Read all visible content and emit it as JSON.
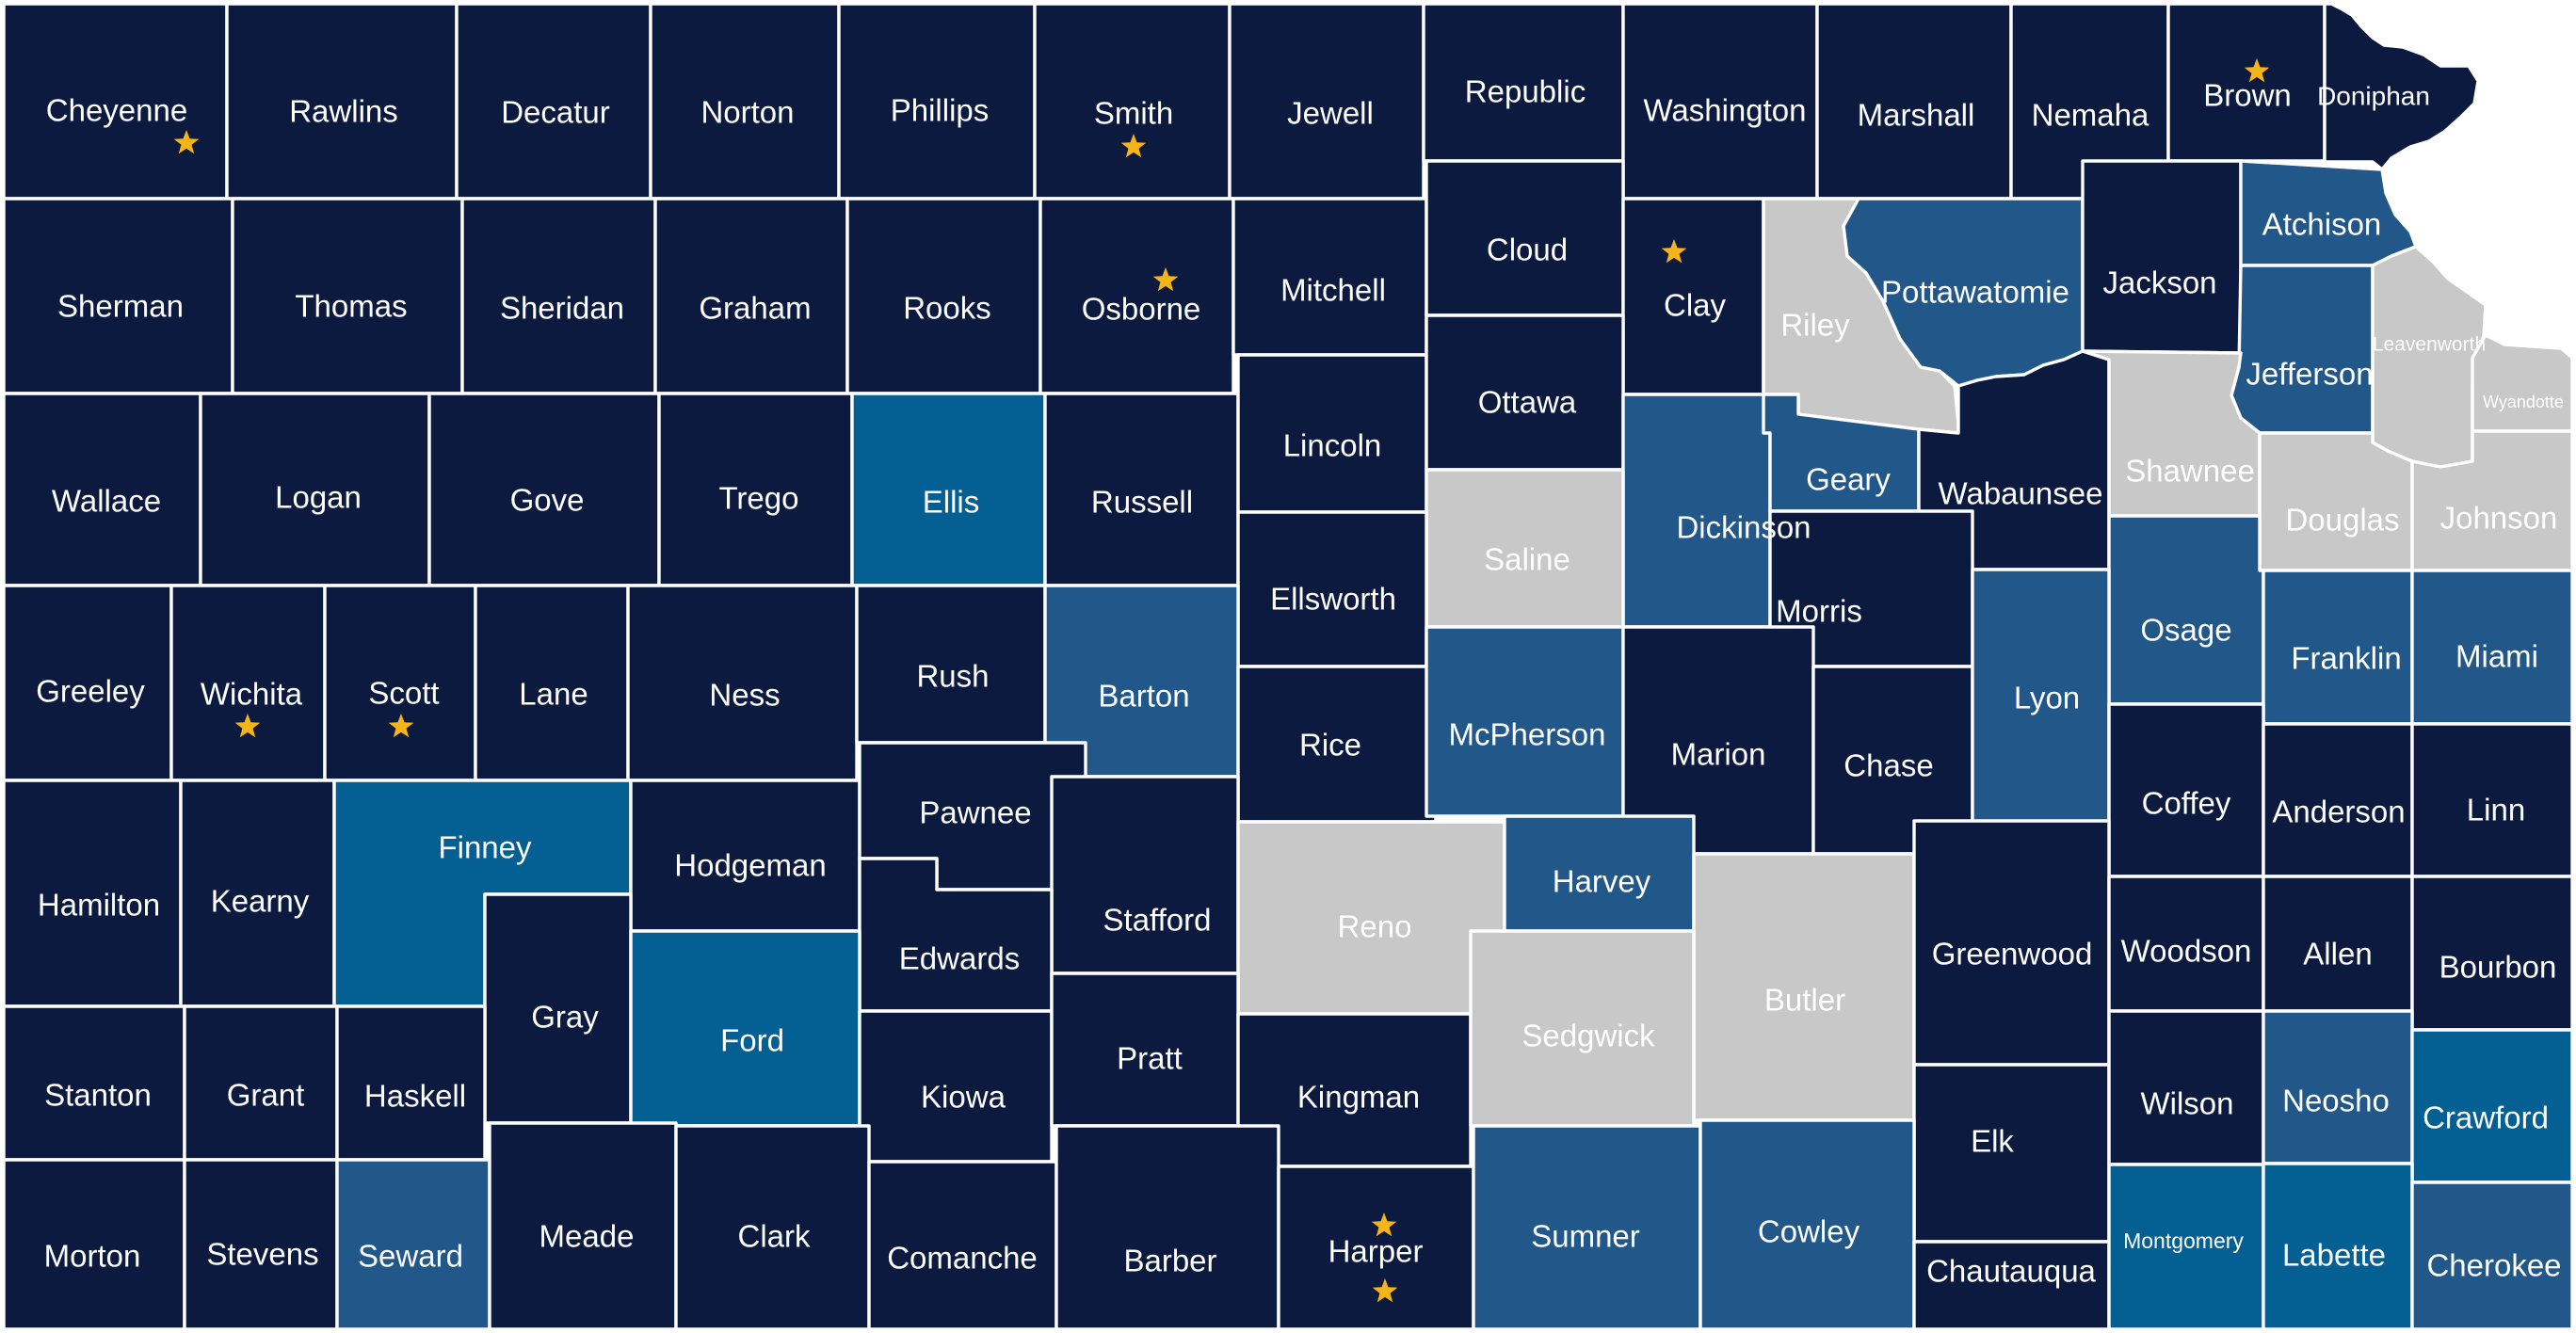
{
  "colors": {
    "dark": "#0c1a40",
    "mid": "#22578a",
    "bright": "#045f93",
    "gray": "#c8c8c8",
    "star": "#f5b417",
    "label_light": "#ffffff"
  },
  "counties": [
    {
      "name": "Cheyenne",
      "category": "dark",
      "stars": 1
    },
    {
      "name": "Rawlins",
      "category": "dark",
      "stars": 0
    },
    {
      "name": "Decatur",
      "category": "dark",
      "stars": 0
    },
    {
      "name": "Norton",
      "category": "dark",
      "stars": 0
    },
    {
      "name": "Phillips",
      "category": "dark",
      "stars": 0
    },
    {
      "name": "Smith",
      "category": "dark",
      "stars": 1
    },
    {
      "name": "Jewell",
      "category": "dark",
      "stars": 0
    },
    {
      "name": "Republic",
      "category": "dark",
      "stars": 0
    },
    {
      "name": "Washington",
      "category": "dark",
      "stars": 0
    },
    {
      "name": "Marshall",
      "category": "dark",
      "stars": 0
    },
    {
      "name": "Nemaha",
      "category": "dark",
      "stars": 0
    },
    {
      "name": "Brown",
      "category": "dark",
      "stars": 1
    },
    {
      "name": "Doniphan",
      "category": "dark",
      "stars": 0
    },
    {
      "name": "Sherman",
      "category": "dark",
      "stars": 0
    },
    {
      "name": "Thomas",
      "category": "dark",
      "stars": 0
    },
    {
      "name": "Sheridan",
      "category": "dark",
      "stars": 0
    },
    {
      "name": "Graham",
      "category": "dark",
      "stars": 0
    },
    {
      "name": "Rooks",
      "category": "dark",
      "stars": 0
    },
    {
      "name": "Osborne",
      "category": "dark",
      "stars": 1
    },
    {
      "name": "Mitchell",
      "category": "dark",
      "stars": 0
    },
    {
      "name": "Cloud",
      "category": "dark",
      "stars": 0
    },
    {
      "name": "Clay",
      "category": "dark",
      "stars": 1
    },
    {
      "name": "Riley",
      "category": "gray",
      "stars": 0
    },
    {
      "name": "Pottawatomie",
      "category": "mid",
      "stars": 0
    },
    {
      "name": "Jackson",
      "category": "dark",
      "stars": 0
    },
    {
      "name": "Atchison",
      "category": "mid",
      "stars": 0
    },
    {
      "name": "Jefferson",
      "category": "mid",
      "stars": 0
    },
    {
      "name": "Leavenworth",
      "category": "gray",
      "stars": 0
    },
    {
      "name": "Wyandotte",
      "category": "gray",
      "stars": 0
    },
    {
      "name": "Wallace",
      "category": "dark",
      "stars": 0
    },
    {
      "name": "Logan",
      "category": "dark",
      "stars": 0
    },
    {
      "name": "Gove",
      "category": "dark",
      "stars": 0
    },
    {
      "name": "Trego",
      "category": "dark",
      "stars": 0
    },
    {
      "name": "Ellis",
      "category": "bright",
      "stars": 0
    },
    {
      "name": "Russell",
      "category": "dark",
      "stars": 0
    },
    {
      "name": "Lincoln",
      "category": "dark",
      "stars": 0
    },
    {
      "name": "Ottawa",
      "category": "dark",
      "stars": 0
    },
    {
      "name": "Dickinson",
      "category": "mid",
      "stars": 0
    },
    {
      "name": "Geary",
      "category": "mid",
      "stars": 0
    },
    {
      "name": "Wabaunsee",
      "category": "dark",
      "stars": 0
    },
    {
      "name": "Shawnee",
      "category": "gray",
      "stars": 0
    },
    {
      "name": "Douglas",
      "category": "gray",
      "stars": 0
    },
    {
      "name": "Johnson",
      "category": "gray",
      "stars": 0
    },
    {
      "name": "Saline",
      "category": "gray",
      "stars": 0
    },
    {
      "name": "Ellsworth",
      "category": "dark",
      "stars": 0
    },
    {
      "name": "Morris",
      "category": "dark",
      "stars": 0
    },
    {
      "name": "Osage",
      "category": "mid",
      "stars": 0
    },
    {
      "name": "Franklin",
      "category": "mid",
      "stars": 0
    },
    {
      "name": "Miami",
      "category": "mid",
      "stars": 0
    },
    {
      "name": "Greeley",
      "category": "dark",
      "stars": 0
    },
    {
      "name": "Wichita",
      "category": "dark",
      "stars": 1
    },
    {
      "name": "Scott",
      "category": "dark",
      "stars": 1
    },
    {
      "name": "Lane",
      "category": "dark",
      "stars": 0
    },
    {
      "name": "Ness",
      "category": "dark",
      "stars": 0
    },
    {
      "name": "Rush",
      "category": "dark",
      "stars": 0
    },
    {
      "name": "Barton",
      "category": "mid",
      "stars": 0
    },
    {
      "name": "Rice",
      "category": "dark",
      "stars": 0
    },
    {
      "name": "McPherson",
      "category": "mid",
      "stars": 0
    },
    {
      "name": "Marion",
      "category": "dark",
      "stars": 0
    },
    {
      "name": "Chase",
      "category": "dark",
      "stars": 0
    },
    {
      "name": "Lyon",
      "category": "mid",
      "stars": 0
    },
    {
      "name": "Coffey",
      "category": "dark",
      "stars": 0
    },
    {
      "name": "Anderson",
      "category": "dark",
      "stars": 0
    },
    {
      "name": "Linn",
      "category": "dark",
      "stars": 0
    },
    {
      "name": "Hamilton",
      "category": "dark",
      "stars": 0
    },
    {
      "name": "Kearny",
      "category": "dark",
      "stars": 0
    },
    {
      "name": "Finney",
      "category": "bright",
      "stars": 0
    },
    {
      "name": "Hodgeman",
      "category": "dark",
      "stars": 0
    },
    {
      "name": "Pawnee",
      "category": "dark",
      "stars": 0
    },
    {
      "name": "Stafford",
      "category": "dark",
      "stars": 0
    },
    {
      "name": "Reno",
      "category": "gray",
      "stars": 0
    },
    {
      "name": "Harvey",
      "category": "mid",
      "stars": 0
    },
    {
      "name": "Butler",
      "category": "gray",
      "stars": 0
    },
    {
      "name": "Greenwood",
      "category": "dark",
      "stars": 0
    },
    {
      "name": "Woodson",
      "category": "dark",
      "stars": 0
    },
    {
      "name": "Allen",
      "category": "dark",
      "stars": 0
    },
    {
      "name": "Bourbon",
      "category": "dark",
      "stars": 0
    },
    {
      "name": "Edwards",
      "category": "dark",
      "stars": 0
    },
    {
      "name": "Gray",
      "category": "dark",
      "stars": 0
    },
    {
      "name": "Ford",
      "category": "bright",
      "stars": 0
    },
    {
      "name": "Stanton",
      "category": "dark",
      "stars": 0
    },
    {
      "name": "Grant",
      "category": "dark",
      "stars": 0
    },
    {
      "name": "Haskell",
      "category": "dark",
      "stars": 0
    },
    {
      "name": "Kiowa",
      "category": "dark",
      "stars": 0
    },
    {
      "name": "Pratt",
      "category": "dark",
      "stars": 0
    },
    {
      "name": "Kingman",
      "category": "dark",
      "stars": 0
    },
    {
      "name": "Sedgwick",
      "category": "gray",
      "stars": 0
    },
    {
      "name": "Elk",
      "category": "dark",
      "stars": 0
    },
    {
      "name": "Wilson",
      "category": "dark",
      "stars": 0
    },
    {
      "name": "Neosho",
      "category": "mid",
      "stars": 0
    },
    {
      "name": "Crawford",
      "category": "bright",
      "stars": 0
    },
    {
      "name": "Morton",
      "category": "dark",
      "stars": 0
    },
    {
      "name": "Stevens",
      "category": "dark",
      "stars": 0
    },
    {
      "name": "Seward",
      "category": "mid",
      "stars": 0
    },
    {
      "name": "Meade",
      "category": "dark",
      "stars": 0
    },
    {
      "name": "Clark",
      "category": "dark",
      "stars": 0
    },
    {
      "name": "Comanche",
      "category": "dark",
      "stars": 0
    },
    {
      "name": "Barber",
      "category": "dark",
      "stars": 0
    },
    {
      "name": "Harper",
      "category": "dark",
      "stars": 2
    },
    {
      "name": "Sumner",
      "category": "mid",
      "stars": 0
    },
    {
      "name": "Cowley",
      "category": "mid",
      "stars": 0
    },
    {
      "name": "Chautauqua",
      "category": "dark",
      "stars": 0
    },
    {
      "name": "Montgomery",
      "category": "bright",
      "stars": 0
    },
    {
      "name": "Labette",
      "category": "bright",
      "stars": 0
    },
    {
      "name": "Cherokee",
      "category": "mid",
      "stars": 0
    }
  ]
}
